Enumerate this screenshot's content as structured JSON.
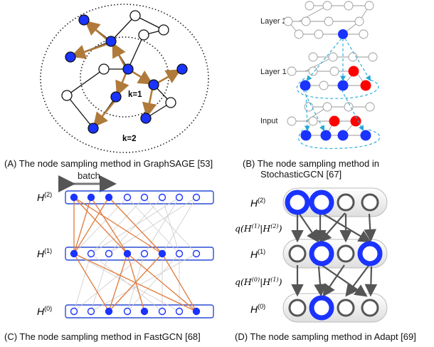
{
  "panel_a": {
    "caption": "(A) The node sampling method in GraphSAGE [53]",
    "k1": "k=1",
    "k2": "k=2"
  },
  "panel_b": {
    "caption_line1": "(B) The node sampling method in",
    "caption_line2": "StochasticGCN [67]",
    "layer2": "Layer 2",
    "layer1": "Layer 1",
    "input": "Input"
  },
  "panel_c": {
    "caption": "(C) The node sampling method in FastGCN [68]",
    "batch": "batch",
    "h2": "H",
    "h2_sup": "(2)",
    "h1": "H",
    "h1_sup": "(1)",
    "h0": "H",
    "h0_sup": "(0)"
  },
  "panel_d": {
    "caption": "(D) The node sampling method in Adapt [69]",
    "h2": "H",
    "h2_sup": "(2)",
    "h1": "H",
    "h1_sup": "(1)",
    "h0": "H",
    "h0_sup": "(0)",
    "q1": "q(H",
    "q1_sup1": "(1)",
    "q1_mid": "|H",
    "q1_sup2": "(2)",
    "q1_end": ")",
    "q0": "q(H",
    "q0_sup1": "(0)",
    "q0_mid": "|H",
    "q0_sup2": "(1)",
    "q0_end": ")"
  },
  "colors": {
    "sampled_node": "#1a33ff",
    "red_node": "#ff0000",
    "edge_brown": "#b07a3a",
    "edge_orange": "#e07a3a",
    "dashed_cyan": "#22a8d8",
    "layer_box": "#2a4bd6",
    "grey": "#555555"
  }
}
